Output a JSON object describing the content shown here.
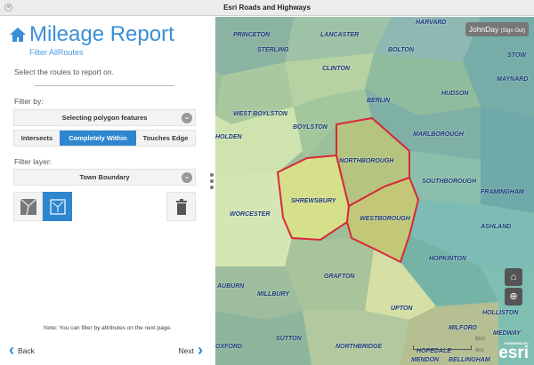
{
  "window": {
    "title": "Esri Roads and Highways"
  },
  "panel": {
    "title": "Mileage Report",
    "subtitle": "Filter AllRoutes",
    "instruction": "Select the routes to report on.",
    "filter_by_label": "Filter by:",
    "filter_by_value": "Selecting polygon features",
    "spatial_options": [
      "Intersects",
      "Completely Within",
      "Touches Edge"
    ],
    "selected_option": "Completely Within",
    "filter_layer_label": "Filter layer:",
    "filter_layer_value": "Town Boundary",
    "note": "Note: You can filter by attributes on the next page.",
    "back": "Back",
    "next": "Next"
  },
  "map": {
    "user": "JohnDay",
    "sign_out": "(Sign Out)",
    "scale_km": "6km",
    "scale_mi": "4mi",
    "logo": "esri",
    "logo_powered": "POWERED BY",
    "highlight_color": "#d8283a",
    "towns": [
      "PRINCETON",
      "HARVARD",
      "LANCASTER",
      "STERLING",
      "BOLTON",
      "STOW",
      "MAYNARD",
      "CLINTON",
      "BERLIN",
      "HUDSON",
      "WEST BOYLSTON",
      "BOYLSTON",
      "MARLBOROUGH",
      "HOLDEN",
      "NORTHBOROUGH",
      "SOUTHBOROUGH",
      "FRAMINGHAM",
      "SHREWSBURY",
      "WESTBOROUGH",
      "WORCESTER",
      "ASHLAND",
      "HOPKINTON",
      "GRAFTON",
      "AUBURN",
      "MILLBURY",
      "HOLLISTON",
      "UPTON",
      "SUTTON",
      "NORTHBRIDGE",
      "MILFORD",
      "MEDWAY",
      "HOPEDALE",
      "MENDON",
      "OXFORD",
      "BELLINGHAM"
    ]
  }
}
